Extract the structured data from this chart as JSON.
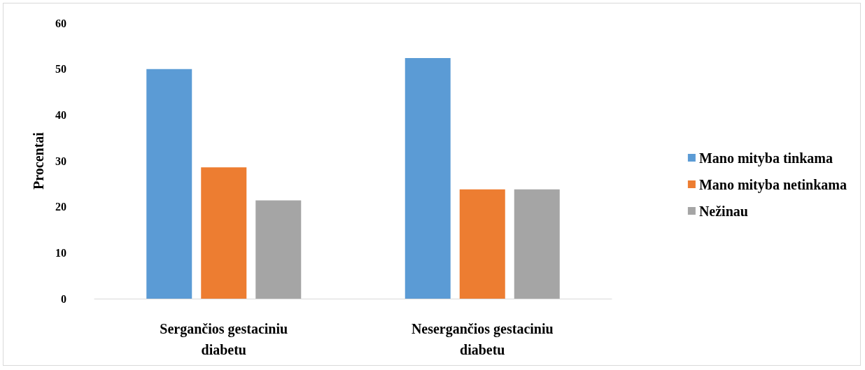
{
  "chart_data": {
    "type": "bar",
    "ylabel": "Procentai",
    "categories": [
      "Sergančios gestaciniu diabetu",
      "Nesergančios gestaciniu diabetu"
    ],
    "series": [
      {
        "name": "Mano mityba tinkama",
        "color": "#5b9bd5",
        "values": [
          50,
          52.4
        ]
      },
      {
        "name": "Mano mityba netinkama",
        "color": "#ed7d31",
        "values": [
          28.6,
          23.8
        ]
      },
      {
        "name": "Nežinau",
        "color": "#a5a5a5",
        "values": [
          21.4,
          23.8
        ]
      }
    ],
    "ylim": [
      0,
      60
    ],
    "yticks": [
      0,
      10,
      20,
      30,
      40,
      50,
      60
    ],
    "grid": false,
    "legend": "right"
  }
}
